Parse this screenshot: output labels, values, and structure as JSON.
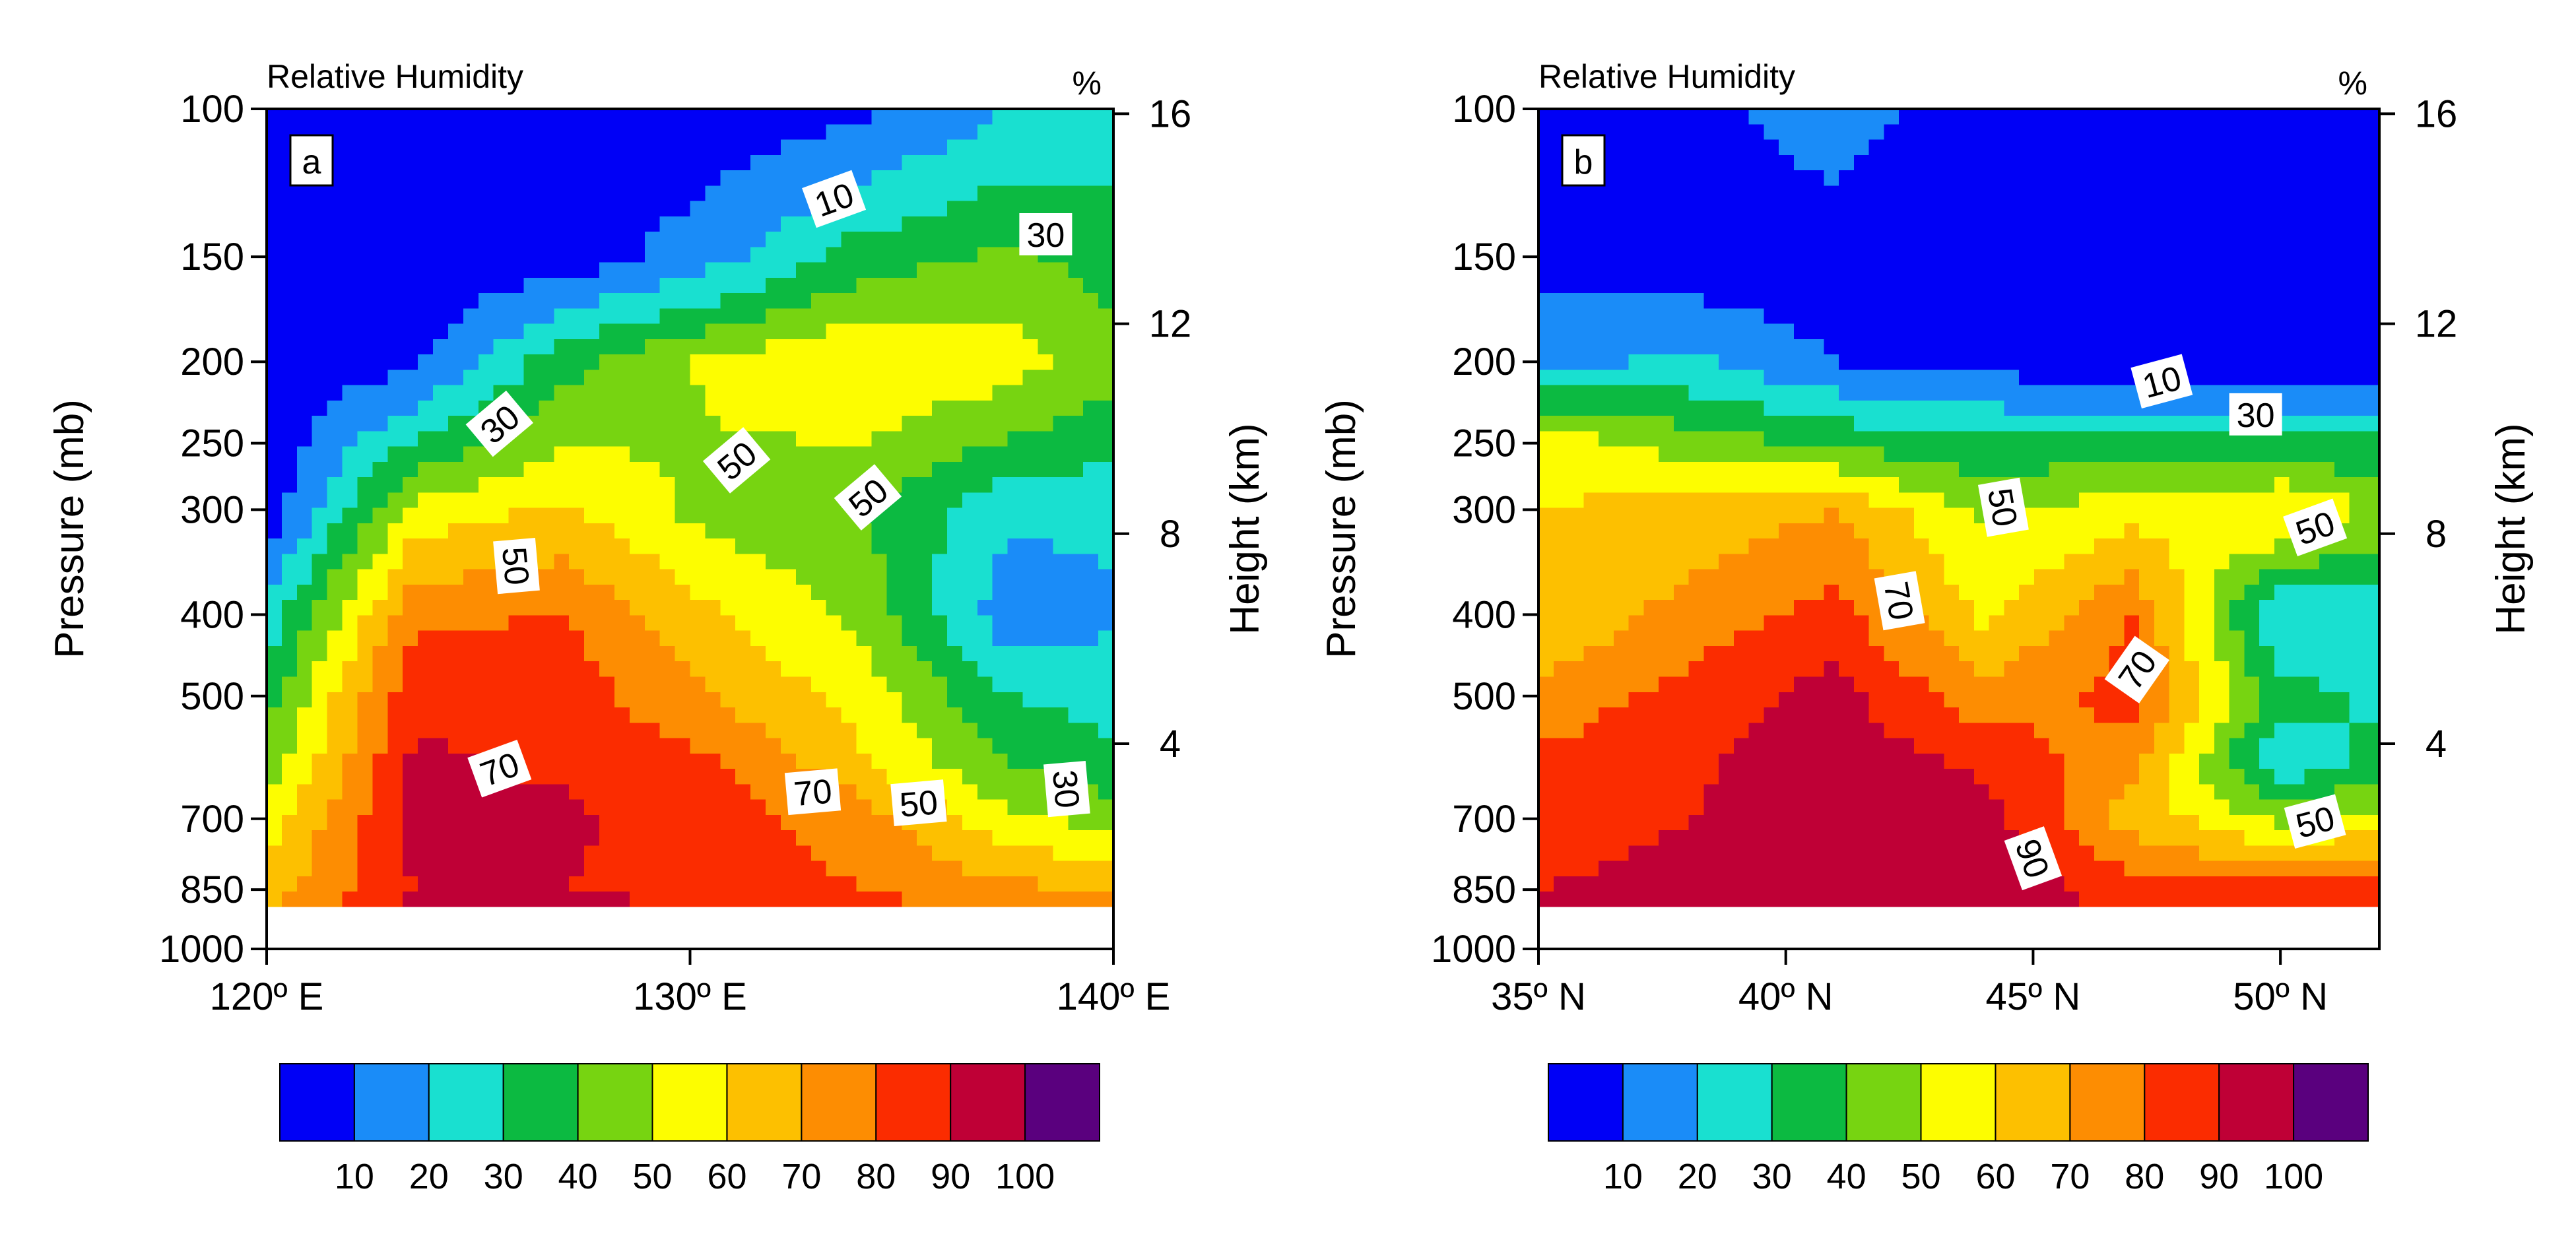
{
  "figure_kind": "relative-humidity-cross-sections",
  "colors": {
    "levels": [
      "#0000f6",
      "#1a8cf8",
      "#19e0d0",
      "#0cba41",
      "#77d411",
      "#fdfd00",
      "#fdc000",
      "#fd8d02",
      "#fb2c00",
      "#bf0036",
      "#5a007e"
    ],
    "missing": "#ffffff",
    "frame": "#000000"
  },
  "chart_data": [
    {
      "type": "contour",
      "panel_label": "a",
      "title": "Relative Humidity",
      "units": "%",
      "ylabel": "Pressure (mb)",
      "y2label": "Height (km)",
      "xlabel": "",
      "x_ticks": [
        "120º E",
        "130º E",
        "140º E"
      ],
      "x_values": [
        120,
        130,
        140
      ],
      "xlim": [
        120,
        140
      ],
      "y_ticks": [
        "100",
        "150",
        "200",
        "250",
        "300",
        "400",
        "500",
        "700",
        "850",
        "1000"
      ],
      "y_values": [
        100,
        150,
        200,
        250,
        300,
        400,
        500,
        700,
        850,
        1000
      ],
      "ylim": [
        1000,
        100
      ],
      "y2_ticks": [
        "16",
        "12",
        "8",
        "4"
      ],
      "y2_values": [
        16,
        12,
        8,
        4
      ],
      "contour_levels": [
        10,
        20,
        30,
        40,
        50,
        60,
        70,
        80,
        90,
        100
      ],
      "colorbar_labels": [
        "10",
        "20",
        "30",
        "40",
        "50",
        "60",
        "70",
        "80",
        "90",
        "100"
      ],
      "field": {
        "x": [
          120,
          123.5,
          127,
          130.5,
          134,
          137.5,
          140
        ],
        "p": [
          100,
          150,
          200,
          300,
          400,
          500,
          600,
          700,
          850,
          920
        ],
        "rh": [
          [
            2,
            2,
            2,
            4,
            8,
            20,
            24
          ],
          [
            2,
            2,
            4,
            16,
            35,
            42,
            36
          ],
          [
            2,
            8,
            36,
            52,
            60,
            55,
            44
          ],
          [
            3,
            54,
            62,
            46,
            40,
            22,
            22
          ],
          [
            24,
            78,
            80,
            62,
            48,
            14,
            18
          ],
          [
            36,
            88,
            86,
            70,
            56,
            30,
            26
          ],
          [
            44,
            92,
            88,
            82,
            62,
            40,
            32
          ],
          [
            55,
            93,
            92,
            84,
            76,
            52,
            46
          ],
          [
            66,
            90,
            90,
            86,
            80,
            74,
            68
          ],
          [
            72,
            93,
            95,
            93,
            85,
            82,
            80
          ]
        ]
      },
      "contour_labels": [
        {
          "text": "10",
          "x": 133.4,
          "p": 128,
          "angle": -20
        },
        {
          "text": "30",
          "x": 138.4,
          "p": 141,
          "angle": 0
        },
        {
          "text": "30",
          "x": 125.5,
          "p": 237,
          "angle": -40
        },
        {
          "text": "50",
          "x": 131.1,
          "p": 262,
          "angle": -40
        },
        {
          "text": "50",
          "x": 134.2,
          "p": 290,
          "angle": -40
        },
        {
          "text": "50",
          "x": 125.9,
          "p": 350,
          "angle": 85
        },
        {
          "text": "70",
          "x": 125.5,
          "p": 610,
          "angle": -20
        },
        {
          "text": "70",
          "x": 132.9,
          "p": 650,
          "angle": -5
        },
        {
          "text": "50",
          "x": 135.4,
          "p": 670,
          "angle": -5
        },
        {
          "text": "30",
          "x": 138.9,
          "p": 645,
          "angle": 85
        }
      ]
    },
    {
      "type": "contour",
      "panel_label": "b",
      "title": "Relative Humidity",
      "units": "%",
      "ylabel": "Pressure (mb)",
      "y2label": "Height (km)",
      "xlabel": "",
      "x_ticks": [
        "35º N",
        "40º N",
        "45º N",
        "50º N"
      ],
      "x_values": [
        35,
        40,
        45,
        50
      ],
      "xlim": [
        35,
        52
      ],
      "y_ticks": [
        "100",
        "150",
        "200",
        "250",
        "300",
        "400",
        "500",
        "700",
        "850",
        "1000"
      ],
      "y_values": [
        100,
        150,
        200,
        250,
        300,
        400,
        500,
        700,
        850,
        1000
      ],
      "ylim": [
        1000,
        100
      ],
      "y2_ticks": [
        "16",
        "12",
        "8",
        "4"
      ],
      "y2_values": [
        16,
        12,
        8,
        4
      ],
      "contour_levels": [
        10,
        20,
        30,
        40,
        50,
        60,
        70,
        80,
        90,
        100
      ],
      "colorbar_labels": [
        "10",
        "20",
        "30",
        "40",
        "50",
        "60",
        "70",
        "80",
        "90",
        "100"
      ],
      "field": {
        "x": [
          35,
          38,
          41,
          44,
          47,
          50,
          52
        ],
        "p": [
          100,
          150,
          200,
          250,
          300,
          400,
          500,
          600,
          700,
          850,
          920
        ],
        "rh": [
          [
            4,
            6,
            16,
            2,
            2,
            2,
            2
          ],
          [
            8,
            4,
            2,
            2,
            2,
            2,
            2
          ],
          [
            16,
            22,
            10,
            6,
            2,
            2,
            2
          ],
          [
            56,
            46,
            38,
            32,
            34,
            32,
            32
          ],
          [
            60,
            64,
            70,
            48,
            56,
            62,
            48
          ],
          [
            60,
            74,
            84,
            58,
            80,
            20,
            22
          ],
          [
            74,
            84,
            94,
            74,
            84,
            34,
            28
          ],
          [
            82,
            88,
            96,
            88,
            72,
            22,
            34
          ],
          [
            86,
            90,
            96,
            94,
            66,
            48,
            55
          ],
          [
            90,
            93,
            96,
            96,
            86,
            84,
            84
          ],
          [
            90,
            94,
            96,
            96,
            90,
            86,
            86
          ]
        ]
      },
      "contour_labels": [
        {
          "text": "10",
          "x": 47.6,
          "p": 211,
          "angle": -15
        },
        {
          "text": "30",
          "x": 49.5,
          "p": 231,
          "angle": 0
        },
        {
          "text": "50",
          "x": 44.4,
          "p": 298,
          "angle": 80
        },
        {
          "text": "50",
          "x": 50.7,
          "p": 315,
          "angle": -20
        },
        {
          "text": "70",
          "x": 42.3,
          "p": 385,
          "angle": 80
        },
        {
          "text": "70",
          "x": 47.1,
          "p": 465,
          "angle": -55
        },
        {
          "text": "50",
          "x": 50.7,
          "p": 705,
          "angle": -15
        },
        {
          "text": "90",
          "x": 45.0,
          "p": 780,
          "angle": 70
        }
      ]
    }
  ]
}
